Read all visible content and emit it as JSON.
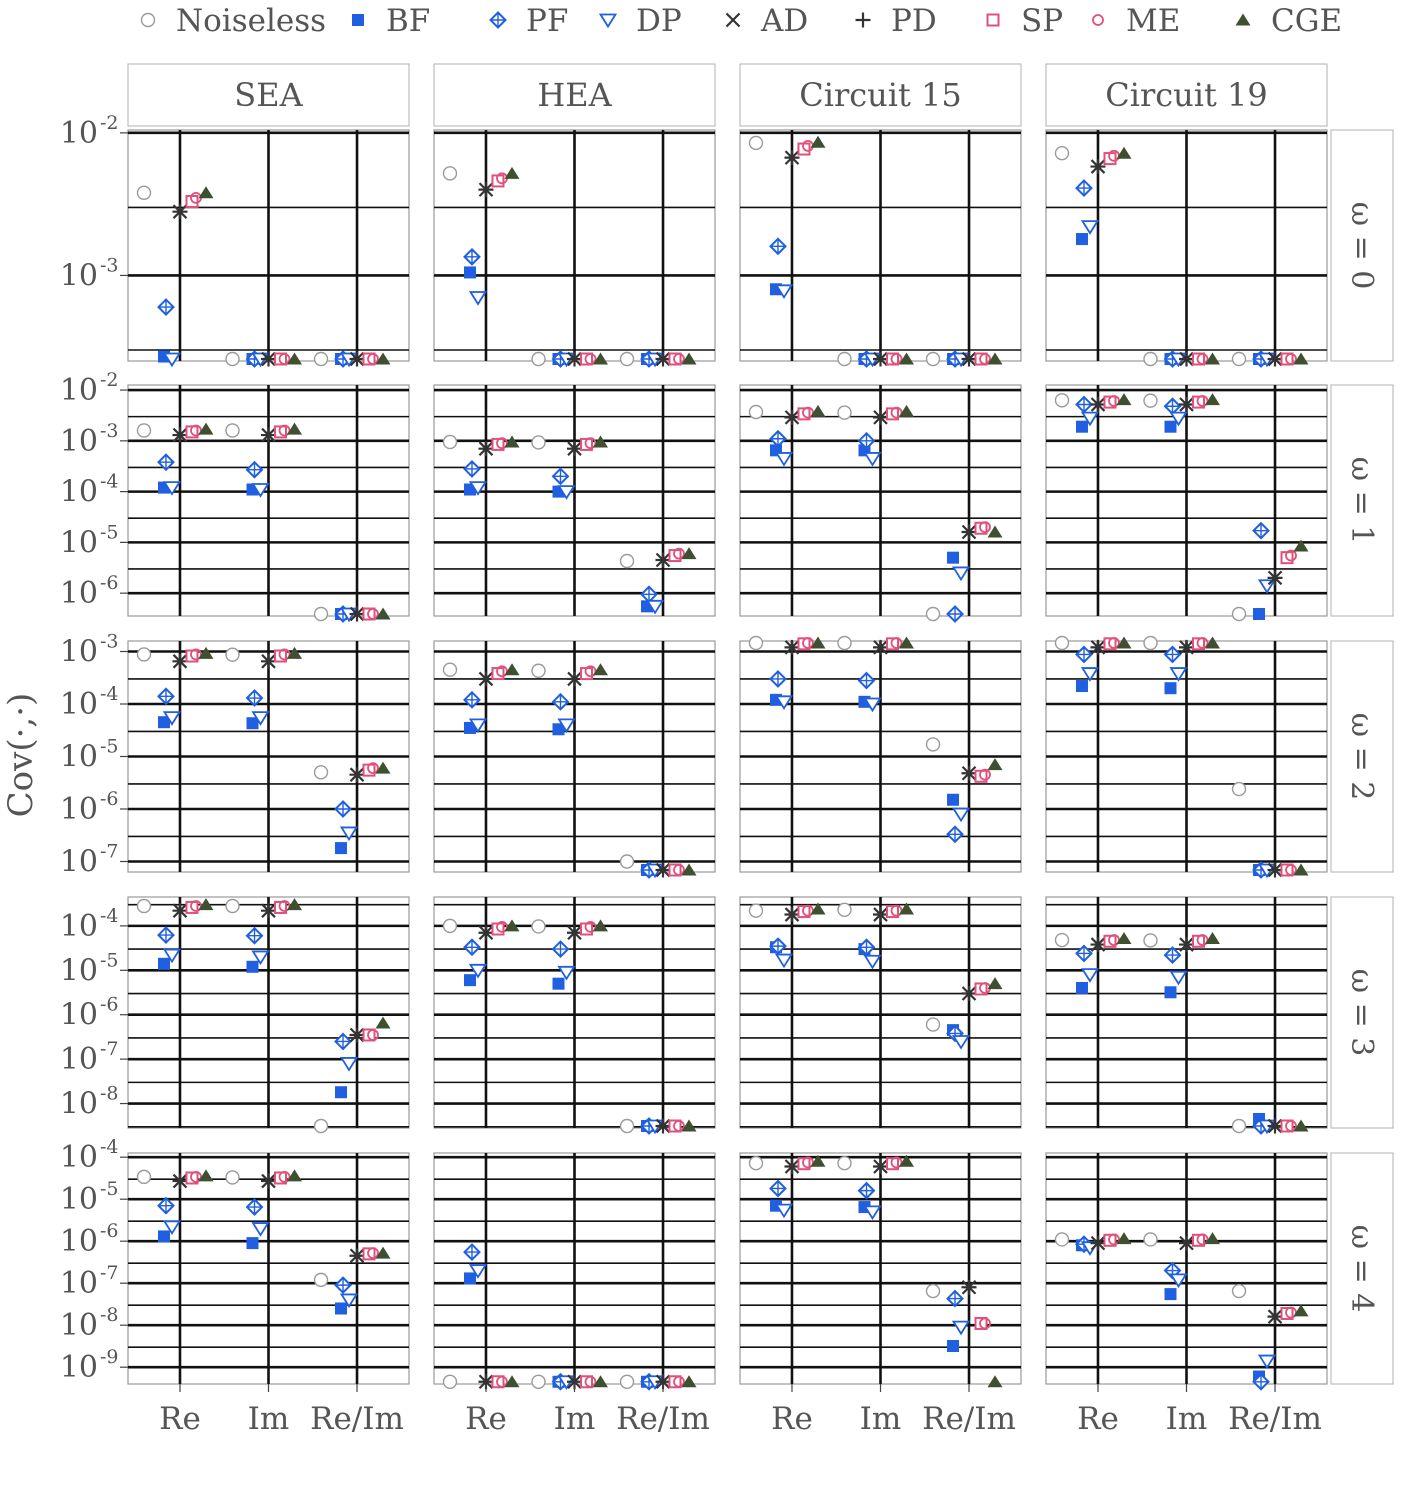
{
  "legend": [
    {
      "name": "Noiseless",
      "marker": "circle-open",
      "color": "#9a9a9a"
    },
    {
      "name": "BF",
      "marker": "square-filled",
      "color": "#1f5fe0"
    },
    {
      "name": "PF",
      "marker": "diamond-plus",
      "color": "#1f5fe0"
    },
    {
      "name": "DP",
      "marker": "triangle-down-open",
      "color": "#1f5fe0"
    },
    {
      "name": "AD",
      "marker": "x-cross",
      "color": "#333333"
    },
    {
      "name": "PD",
      "marker": "plus-cross",
      "color": "#333333"
    },
    {
      "name": "SP",
      "marker": "square-open",
      "color": "#e0507a"
    },
    {
      "name": "ME",
      "marker": "circle-small-open",
      "color": "#e0507a"
    },
    {
      "name": "CGE",
      "marker": "triangle-up-filled",
      "color": "#3f5030"
    }
  ],
  "chart_data": {
    "type": "scatter",
    "ylabel": "Cov(·,·)",
    "yscale": "log",
    "categories": [
      "Re",
      "Im",
      "Re/Im"
    ],
    "columns": [
      "SEA",
      "HEA",
      "Circuit 15",
      "Circuit 19"
    ],
    "rows": [
      "ω = 0",
      "ω = 1",
      "ω = 2",
      "ω = 3",
      "ω = 4"
    ],
    "row_ylim_exp": [
      [
        -3.6,
        -1.98
      ],
      [
        -6.45,
        -1.9
      ],
      [
        -7.2,
        -2.8
      ],
      [
        -8.55,
        -3.35
      ],
      [
        -9.4,
        -3.9
      ]
    ],
    "row_ticks_exp": [
      [
        -3,
        -2
      ],
      [
        -6,
        -5,
        -4,
        -3,
        -2
      ],
      [
        -7,
        -6,
        -5,
        -4,
        -3
      ],
      [
        -8,
        -7,
        -6,
        -5,
        -4
      ],
      [
        -9,
        -8,
        -7,
        -6,
        -5,
        -4
      ]
    ],
    "series_order": [
      "Noiseless",
      "BF",
      "PF",
      "DP",
      "AD",
      "PD",
      "SP",
      "ME",
      "CGE"
    ],
    "panels": [
      [
        {
          "Re": [
            0.0038,
            0.00027,
            0.0006,
            0.00025,
            0.0028,
            0.0028,
            0.0033,
            0.0035,
            0.0038
          ],
          "Im": [
            0.00025,
            0.00025,
            0.00025,
            0.00025,
            0.00025,
            0.00025,
            0.00025,
            0.00025,
            0.00025
          ],
          "Re/Im": [
            0.00025,
            0.00025,
            0.00025,
            0.00025,
            0.00025,
            0.00025,
            0.00025,
            0.00025,
            0.00025
          ]
        },
        {
          "Re": [
            0.0052,
            0.00105,
            0.00135,
            0.0007,
            0.004,
            0.004,
            0.0046,
            0.0048,
            0.0052
          ],
          "Im": [
            0.00025,
            0.00025,
            0.00025,
            0.00025,
            0.00025,
            0.00025,
            0.00025,
            0.00025,
            0.00025
          ],
          "Re/Im": [
            0.00025,
            0.00025,
            0.00025,
            0.00025,
            0.00025,
            0.00025,
            0.00025,
            0.00025,
            0.00025
          ]
        },
        {
          "Re": [
            0.0085,
            0.0008,
            0.0016,
            0.00078,
            0.0067,
            0.0067,
            0.0077,
            0.0081,
            0.0086
          ],
          "Im": [
            0.00025,
            0.00025,
            0.00025,
            0.00025,
            0.00025,
            0.00025,
            0.00025,
            0.00025,
            0.00025
          ],
          "Re/Im": [
            0.00025,
            0.00025,
            0.00025,
            0.00025,
            0.00025,
            0.00025,
            0.00025,
            0.00025,
            0.00025
          ]
        },
        {
          "Re": [
            0.0072,
            0.0018,
            0.0041,
            0.0022,
            0.0058,
            0.0058,
            0.0066,
            0.0069,
            0.0072
          ],
          "Im": [
            0.00025,
            0.00025,
            0.00025,
            0.00025,
            0.00025,
            0.00025,
            0.00025,
            0.00025,
            0.00025
          ],
          "Re/Im": [
            0.00025,
            0.00025,
            0.00025,
            0.00025,
            0.00025,
            0.00025,
            0.00025,
            0.00025,
            0.00025
          ]
        }
      ],
      [
        {
          "Re": [
            0.0016,
            0.00012,
            0.00038,
            0.00012,
            0.0013,
            0.0013,
            0.0015,
            0.0016,
            0.0017
          ],
          "Im": [
            0.0016,
            0.00011,
            0.00027,
            0.00011,
            0.0013,
            0.0013,
            0.0015,
            0.0016,
            0.0017
          ],
          "Re/Im": [
            3.8e-07,
            3.8e-07,
            3.8e-07,
            3.8e-07,
            3.8e-07,
            3.8e-07,
            3.8e-07,
            3.8e-07,
            3.8e-07
          ]
        },
        {
          "Re": [
            0.00095,
            0.00011,
            0.00028,
            0.00012,
            0.0007,
            0.0007,
            0.00085,
            0.0009,
            0.00095
          ],
          "Im": [
            0.00093,
            0.0001,
            0.0002,
            0.0001,
            0.0007,
            0.0007,
            0.00085,
            0.0009,
            0.00095
          ],
          "Re/Im": [
            4.3e-06,
            5.5e-07,
            9.5e-07,
            5.5e-07,
            4.5e-06,
            4.5e-06,
            5.5e-06,
            6e-06,
            6e-06
          ]
        },
        {
          "Re": [
            0.0037,
            0.00065,
            0.0011,
            0.00045,
            0.0029,
            0.0029,
            0.0034,
            0.0036,
            0.0038
          ],
          "Im": [
            0.0036,
            0.00065,
            0.001,
            0.00045,
            0.0029,
            0.0029,
            0.0034,
            0.0036,
            0.0038
          ],
          "Re/Im": [
            3.8e-07,
            5e-06,
            3.8e-07,
            2.5e-06,
            1.6e-05,
            1.6e-05,
            1.9e-05,
            2e-05,
            1.6e-05
          ]
        },
        {
          "Re": [
            0.0063,
            0.0019,
            0.0052,
            0.0028,
            0.0052,
            0.0052,
            0.0058,
            0.0061,
            0.0065
          ],
          "Im": [
            0.0062,
            0.0019,
            0.0048,
            0.0028,
            0.0052,
            0.0052,
            0.0058,
            0.0061,
            0.0065
          ],
          "Re/Im": [
            3.8e-07,
            3.8e-07,
            1.7e-05,
            1.4e-06,
            2e-06,
            2e-06,
            5e-06,
            5.5e-06,
            8.5e-06
          ]
        }
      ],
      [
        {
          "Re": [
            0.00088,
            4.5e-05,
            0.00014,
            5.5e-05,
            0.00065,
            0.00065,
            0.00082,
            0.00088,
            0.00092
          ],
          "Im": [
            0.00087,
            4.3e-05,
            0.00013,
            5.5e-05,
            0.00065,
            0.00065,
            0.00082,
            0.00088,
            0.00092
          ],
          "Re/Im": [
            5e-06,
            1.8e-07,
            1e-06,
            3.5e-07,
            4.5e-06,
            4.5e-06,
            5.5e-06,
            6e-06,
            6e-06
          ]
        },
        {
          "Re": [
            0.00045,
            3.5e-05,
            0.00012,
            4e-05,
            0.0003,
            0.0003,
            0.00038,
            0.00042,
            0.00045
          ],
          "Im": [
            0.00043,
            3.3e-05,
            0.00011,
            4e-05,
            0.0003,
            0.0003,
            0.00038,
            0.00042,
            0.00045
          ],
          "Re/Im": [
            1e-07,
            6.6e-08,
            6.6e-08,
            6.6e-08,
            6.6e-08,
            6.6e-08,
            6.6e-08,
            6.6e-08,
            6.6e-08
          ]
        },
        {
          "Re": [
            0.0015,
            0.00012,
            0.0003,
            0.00011,
            0.0012,
            0.0012,
            0.0014,
            0.0015,
            0.0016
          ],
          "Im": [
            0.0015,
            0.00011,
            0.00028,
            0.0001,
            0.0012,
            0.0012,
            0.0014,
            0.0015,
            0.0016
          ],
          "Re/Im": [
            1.7e-05,
            1.5e-06,
            3.3e-07,
            8e-07,
            4.8e-06,
            4.8e-06,
            4.2e-06,
            4.5e-06,
            7e-06
          ]
        },
        {
          "Re": [
            0.0015,
            0.00022,
            0.00088,
            0.00038,
            0.0012,
            0.0012,
            0.0014,
            0.0015,
            0.0015
          ],
          "Im": [
            0.0015,
            0.0002,
            0.00088,
            0.00038,
            0.0012,
            0.0012,
            0.0014,
            0.0015,
            0.0015
          ],
          "Re/Im": [
            2.4e-06,
            6.6e-08,
            6.6e-08,
            6.6e-08,
            6.6e-08,
            6.6e-08,
            6.6e-08,
            6.6e-08,
            6.6e-08
          ]
        }
      ],
      [
        {
          "Re": [
            0.00028,
            1.4e-05,
            6.2e-05,
            2.2e-05,
            0.00022,
            0.00022,
            0.00026,
            0.00028,
            0.0003
          ],
          "Im": [
            0.00028,
            1.2e-05,
            6e-05,
            2e-05,
            0.00022,
            0.00022,
            0.00026,
            0.00028,
            0.0003
          ],
          "Re/Im": [
            3e-09,
            1.8e-08,
            2.5e-07,
            8e-08,
            3.5e-07,
            3.5e-07,
            3.5e-07,
            3.5e-07,
            6.5e-07
          ]
        },
        {
          "Re": [
            0.0001,
            6e-06,
            3.3e-05,
            1e-05,
            7e-05,
            7e-05,
            8.5e-05,
            9.5e-05,
            0.0001
          ],
          "Im": [
            9.7e-05,
            5e-06,
            3e-05,
            9e-06,
            7e-05,
            7e-05,
            8.5e-05,
            9.5e-05,
            0.0001
          ],
          "Re/Im": [
            3e-09,
            3e-09,
            3e-09,
            3e-09,
            3e-09,
            3e-09,
            3e-09,
            3e-09,
            3e-09
          ]
        },
        {
          "Re": [
            0.00022,
            3.3e-05,
            3.5e-05,
            1.7e-05,
            0.00018,
            0.00018,
            0.00021,
            0.00022,
            0.00024
          ],
          "Im": [
            0.00023,
            3e-05,
            3.3e-05,
            1.6e-05,
            0.00018,
            0.00018,
            0.00021,
            0.00022,
            0.00024
          ],
          "Re/Im": [
            6e-07,
            4.5e-07,
            3.8e-07,
            2.5e-07,
            3e-06,
            3e-06,
            3.8e-06,
            4e-06,
            5e-06
          ]
        },
        {
          "Re": [
            4.8e-05,
            4e-06,
            2.4e-05,
            8e-06,
            3.8e-05,
            3.8e-05,
            4.5e-05,
            4.8e-05,
            5.2e-05
          ],
          "Im": [
            4.7e-05,
            3.2e-06,
            2.2e-05,
            7e-06,
            3.8e-05,
            3.8e-05,
            4.5e-05,
            4.8e-05,
            5.2e-05
          ],
          "Re/Im": [
            3e-09,
            4.5e-09,
            3e-09,
            3e-09,
            3e-09,
            3e-09,
            3e-09,
            3e-09,
            3e-09
          ]
        }
      ],
      [
        {
          "Re": [
            3.4e-05,
            1.3e-06,
            7e-06,
            2.2e-06,
            2.7e-05,
            2.7e-05,
            3.2e-05,
            3.4e-05,
            3.6e-05
          ],
          "Im": [
            3.3e-05,
            9e-07,
            6.5e-06,
            2e-06,
            2.7e-05,
            2.7e-05,
            3.2e-05,
            3.4e-05,
            3.6e-05
          ],
          "Re/Im": [
            1.2e-07,
            2.5e-08,
            9e-08,
            4e-08,
            4.5e-07,
            4.5e-07,
            5e-07,
            5.2e-07,
            5.2e-07
          ]
        },
        {
          "Re": [
            4.5e-10,
            1.3e-07,
            5.5e-07,
            2e-07,
            4.5e-10,
            4.5e-10,
            4.5e-10,
            4.5e-10,
            4.5e-10
          ],
          "Im": [
            4.5e-10,
            4.5e-10,
            4.5e-10,
            4.5e-10,
            4.5e-10,
            4.5e-10,
            4.5e-10,
            4.5e-10,
            4.5e-10
          ],
          "Re/Im": [
            4.5e-10,
            4.5e-10,
            4.5e-10,
            4.5e-10,
            4.5e-10,
            4.5e-10,
            4.5e-10,
            4.5e-10,
            4.5e-10
          ]
        },
        {
          "Re": [
            7.2e-05,
            7e-06,
            1.8e-05,
            5.5e-06,
            6e-05,
            6e-05,
            7e-05,
            7.5e-05,
            8e-05
          ],
          "Im": [
            7.2e-05,
            6.5e-06,
            1.6e-05,
            5e-06,
            6e-05,
            6e-05,
            7e-05,
            7.5e-05,
            8e-05
          ],
          "Re/Im": [
            6.5e-08,
            3.2e-09,
            4.3e-08,
            9e-09,
            8e-08,
            8e-08,
            1.1e-08,
            1.1e-08,
            4.5e-10
          ]
        },
        {
          "Re": [
            1.1e-06,
            8e-07,
            8.5e-07,
            7e-07,
            9e-07,
            9e-07,
            1.05e-06,
            1.1e-06,
            1.15e-06
          ],
          "Im": [
            1.1e-06,
            5.5e-08,
            2e-07,
            1.2e-07,
            9e-07,
            9e-07,
            1.05e-06,
            1.1e-06,
            1.15e-06
          ],
          "Re/Im": [
            6.5e-08,
            6e-10,
            4.5e-10,
            1.4e-09,
            1.6e-08,
            1.6e-08,
            1.9e-08,
            2e-08,
            2.2e-08
          ]
        }
      ]
    ]
  }
}
